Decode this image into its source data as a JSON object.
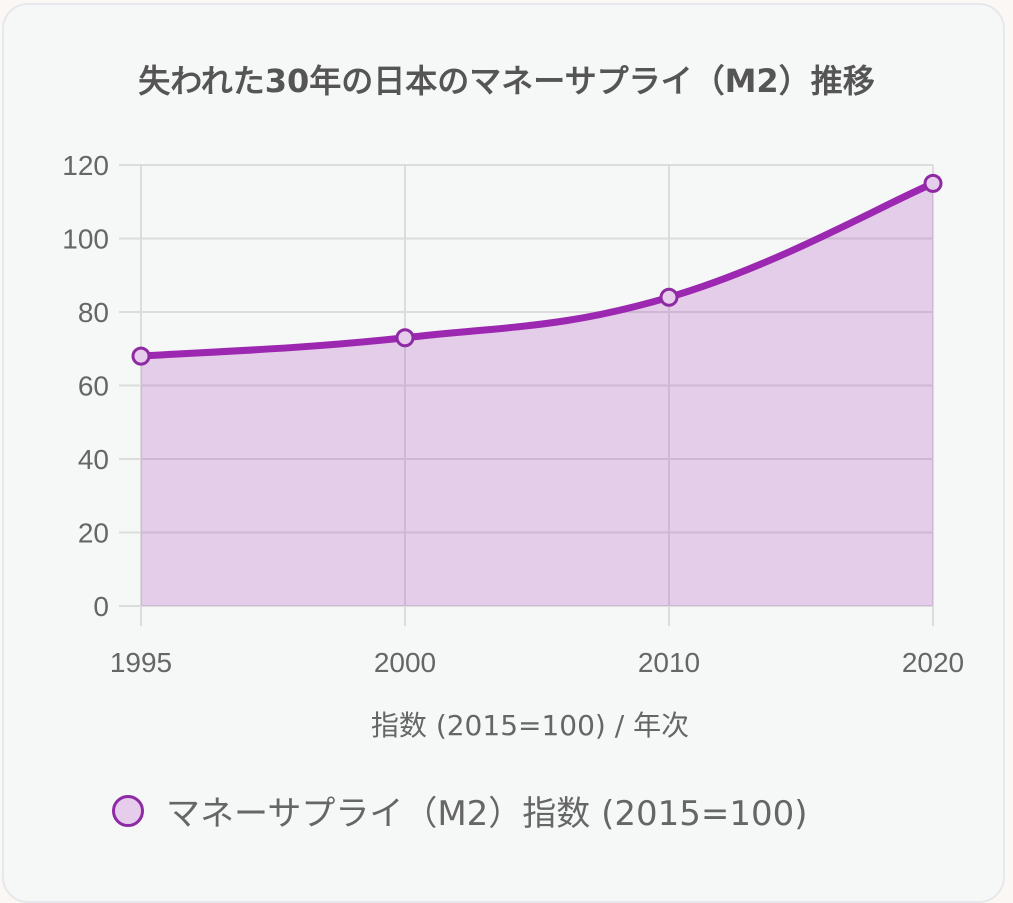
{
  "chart_data": {
    "type": "line",
    "title": "失われた30年の日本のマネーサプライ（M2）推移",
    "categories": [
      "1995",
      "2000",
      "2010",
      "2020"
    ],
    "series": [
      {
        "name": "マネーサプライ（M2）指数 (2015=100)",
        "values": [
          68,
          73,
          84,
          115
        ]
      }
    ],
    "xlabel": "指数 (2015=100) / 年次",
    "ylabel": "",
    "ylim": [
      0,
      120
    ],
    "yticks": [
      "0",
      "20",
      "40",
      "60",
      "80",
      "100",
      "120"
    ],
    "grid": true,
    "filled": true,
    "legend_position": "bottom",
    "colors": {
      "line": "#9c27b0",
      "fill": "rgba(156,39,176,0.2)"
    }
  }
}
